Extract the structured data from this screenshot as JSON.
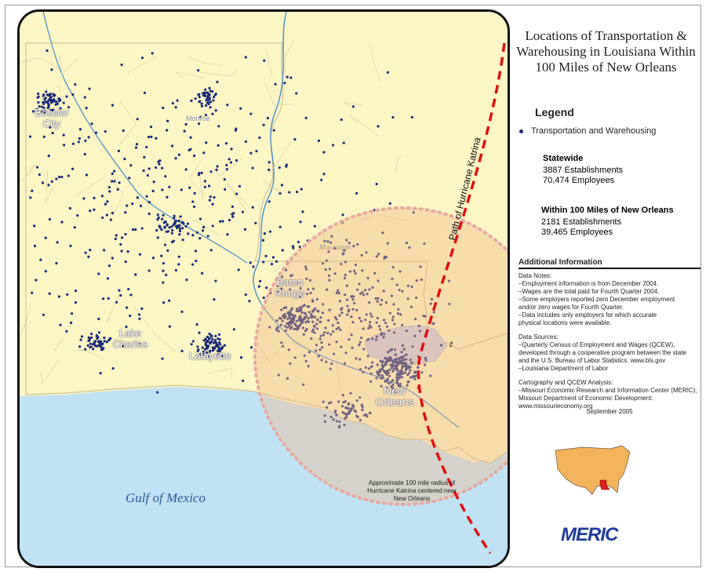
{
  "title": "Locations of Transportation & Warehousing in Louisiana Within 100 Miles of New Orleans",
  "legend": {
    "heading": "Legend",
    "item": "Transportation and Warehousing",
    "item_color": "#1a2a7a"
  },
  "statewide": {
    "heading": "Statewide",
    "establishments": "3887 Establishments",
    "employees": "70,474 Employees"
  },
  "within100": {
    "heading": "Within 100 Miles of New Orleans",
    "establishments": "2181 Establishments",
    "employees": "39,465 Employees"
  },
  "additional": {
    "heading": "Additional Information",
    "notes": "Data Notes:\n–Employment information is from December 2004.\n–Wages are the total paid for Fourth Quarter 2004.\n–Some employers reported zero December employment\n   and/or zero wages for Fourth Quarter.\n–Data includes only employers for which accurate\n   physical locations were available.",
    "sources": "Data Sources:\n–Quarterly Census of Employment and Wages (QCEW),\n   developed through a cooperative program between the state\n   and the U.S. Bureau of Labor Statistics. www.bls.gov\n–Louisiana Department of Labor",
    "cartography": "Cartography and QCEW Analysis:\n–Missouri Economic Research and Information Center (MERIC),\n   Missouri Department of Economic Development.\n   www.missourieconomy.org"
  },
  "date": "September 2005",
  "logo": "MERIC",
  "map": {
    "cities": [
      "Bossier City",
      "Monroe",
      "Baton Rouge",
      "Lake Charles",
      "Lafayette",
      "New Orleans"
    ],
    "state_label": "Mississippi",
    "water_label": "Gulf of Mexico",
    "path_label": "Path of Hurricane Katrina",
    "radius_note": "Approximate 100 mile radius of Hurricane Katrina centered near New Orleans",
    "colors": {
      "land": "#fbf6c4",
      "water": "#bfe3f5",
      "radius": "#f6b98a",
      "path": "#e01010",
      "dots": "#1a2a7a"
    }
  }
}
